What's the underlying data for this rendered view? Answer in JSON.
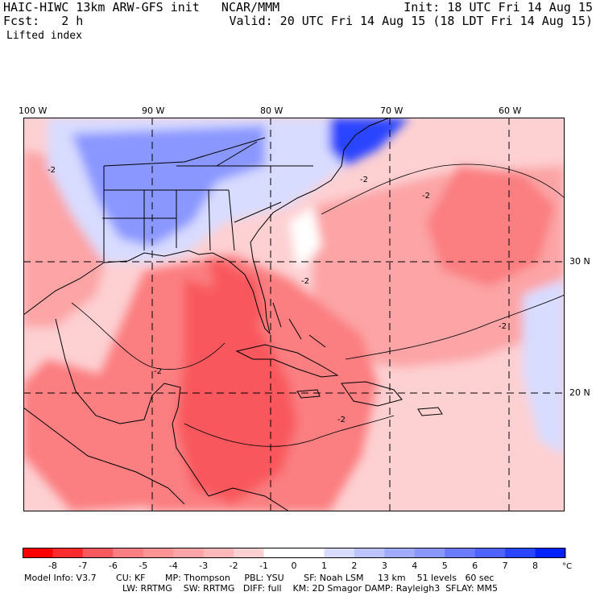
{
  "header": {
    "title": "HAIC-HIWC 13km ARW-GFS init   NCAR/MMM",
    "init": "Init: 18 UTC Fri 14 Aug 15",
    "fcst": "Fcst:   2 h",
    "valid": "Valid: 20 UTC Fri 14 Aug 15 (18 LDT Fri 14 Aug 15)",
    "field": "Lifted index"
  },
  "map": {
    "lon_labels": [
      "100 W",
      "90 W",
      "80 W",
      "70 W",
      "60 W"
    ],
    "lat_labels": [
      "30 N",
      "20 N"
    ],
    "contour_label": "-2",
    "colors": {
      "deep_red": "#ff0000",
      "red": "#f8595d",
      "mid_red": "#fb7e80",
      "pink": "#fca4a6",
      "light_pink": "#fdd0d2",
      "white": "#ffffff",
      "light_blue": "#d8dcff",
      "blue": "#8a97ff",
      "deep_blue": "#2a45ff"
    }
  },
  "colorbar": {
    "ticks": [
      "-8",
      "-7",
      "-6",
      "-5",
      "-4",
      "-3",
      "-2",
      "-1",
      "0",
      "1",
      "2",
      "3",
      "4",
      "5",
      "6",
      "7",
      "8"
    ],
    "unit": "°C",
    "colors": [
      "#ff0000",
      "#fb2a2f",
      "#f8595d",
      "#fb7e80",
      "#fc9496",
      "#fca4a6",
      "#fdb8ba",
      "#fdd0d2",
      "#ffffff",
      "#ffffff",
      "#d8dcff",
      "#bcc4ff",
      "#a0acff",
      "#8a97ff",
      "#6a7bff",
      "#4f63ff",
      "#2a45ff",
      "#0022ff"
    ]
  },
  "footer": {
    "line1": "Model Info: V3.7       CU: KF       MP: Thompson     PBL: YSU       SF: Noah LSM     13 km    51 levels   60 sec",
    "line2": "LW: RRTMG    SW: RRTMG   DIFF: full    KM: 2D Smagor DAMP: Rayleigh3  SFLAY: MM5"
  }
}
